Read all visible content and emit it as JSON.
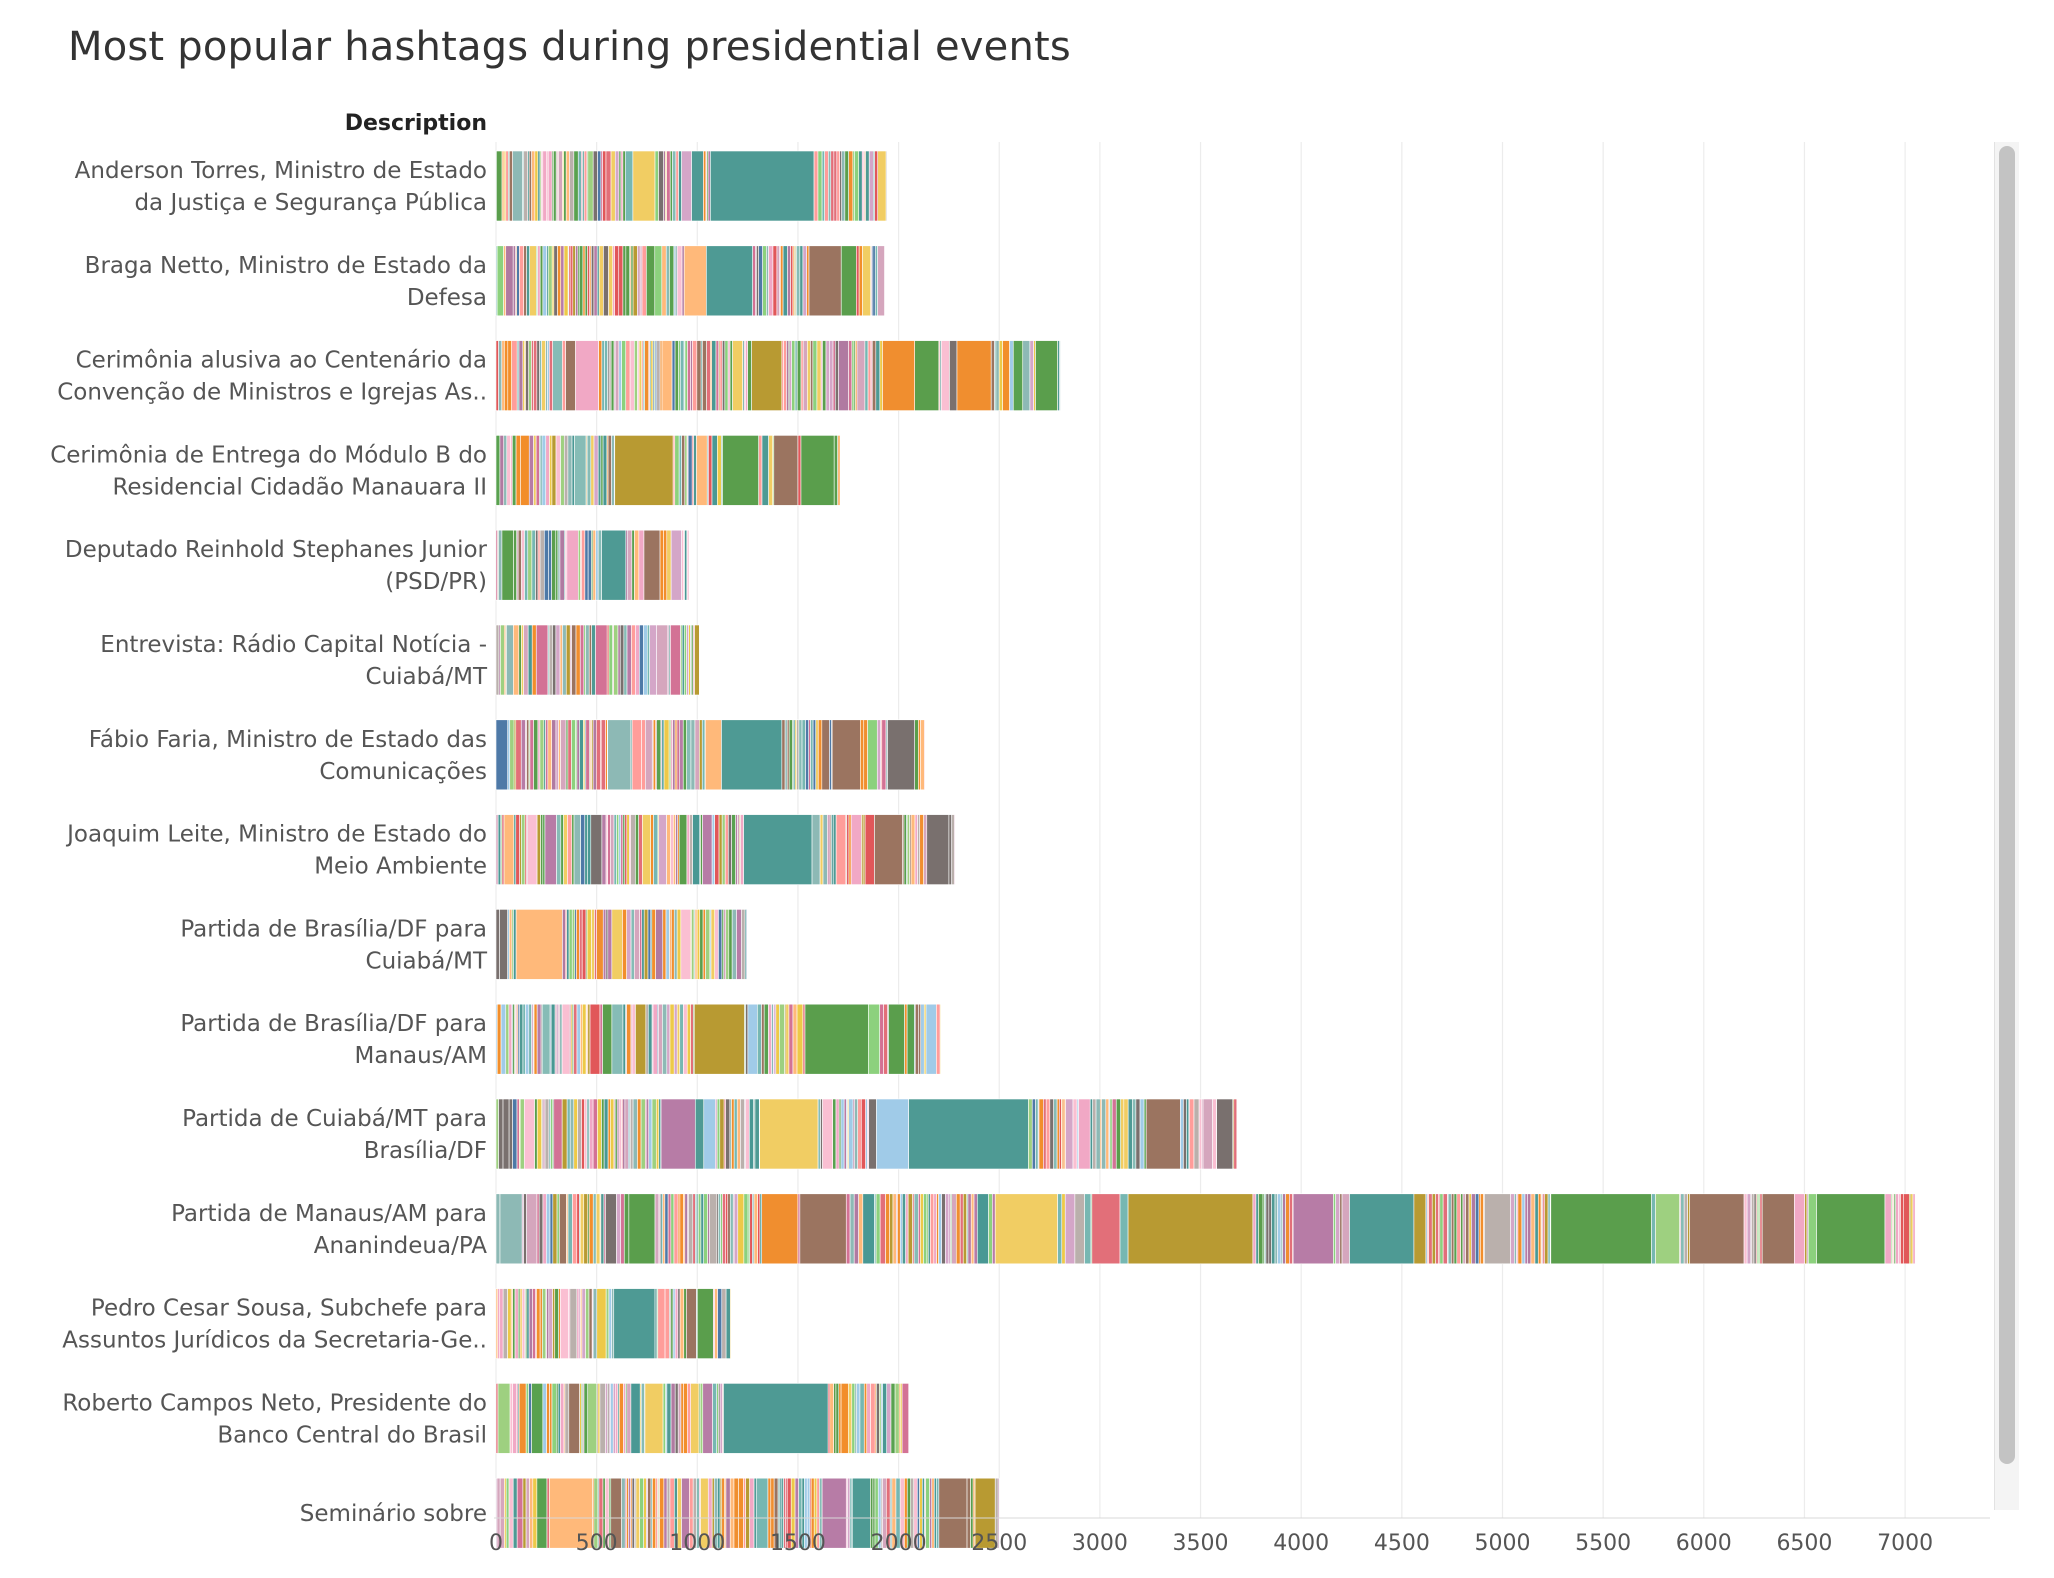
{
  "title": "Most popular hashtags during presidential events",
  "axis_header": "Description",
  "colors": [
    "#4e9a94",
    "#5a9e4c",
    "#9b7460",
    "#f08e2f",
    "#b89a32",
    "#b77ca6",
    "#e26f79",
    "#f1cd63",
    "#ffb97a",
    "#8db9b5",
    "#9ed080",
    "#a0cbe8",
    "#79706e",
    "#f1a8c5",
    "#d5a6bd",
    "#4e79a7",
    "#bab0ac",
    "#d37295",
    "#59a14f",
    "#edc948",
    "#e15759",
    "#76b7b2",
    "#86bcb6",
    "#ff9d9a",
    "#8cd17d",
    "#b07aa1",
    "#499894",
    "#f28e2b",
    "#d4a6c8",
    "#fabfd2"
  ],
  "chart_data": {
    "type": "bar",
    "orientation": "horizontal",
    "stacked": true,
    "title": "Most popular hashtags during presidential events",
    "ylabel": "Description",
    "xlabel": "",
    "xlim": [
      0,
      7450
    ],
    "xticks": [
      0,
      500,
      1000,
      1500,
      2000,
      2500,
      3000,
      3500,
      4000,
      4500,
      5000,
      5500,
      6000,
      6500,
      7000
    ],
    "grid": "vertical",
    "categories": [
      {
        "label": [
          "Anderson Torres, Ministro de Estado",
          "da Justiça e Segurança Pública"
        ],
        "total": 1940,
        "big": [
          {
            "s": 1065,
            "e": 1580,
            "c": 0
          },
          {
            "s": 680,
            "e": 790,
            "c": 7
          },
          {
            "s": 2,
            "e": 30,
            "c": 1
          }
        ]
      },
      {
        "label": [
          "Braga Netto, Ministro de Estado da",
          "Defesa"
        ],
        "total": 1930,
        "big": [
          {
            "s": 1045,
            "e": 1275,
            "c": 0
          },
          {
            "s": 935,
            "e": 1045,
            "c": 8
          },
          {
            "s": 1555,
            "e": 1715,
            "c": 2
          },
          {
            "s": 1715,
            "e": 1790,
            "c": 1
          }
        ]
      },
      {
        "label": [
          "Cerimônia alusiva ao Centenário da",
          "Convenção de Ministros e Igrejas As.."
        ],
        "total": 2800,
        "big": [
          {
            "s": 1270,
            "e": 1420,
            "c": 4
          },
          {
            "s": 1920,
            "e": 2080,
            "c": 3
          },
          {
            "s": 2290,
            "e": 2460,
            "c": 3
          },
          {
            "s": 2680,
            "e": 2790,
            "c": 1
          },
          {
            "s": 395,
            "e": 510,
            "c": 13
          },
          {
            "s": 2080,
            "e": 2200,
            "c": 1
          }
        ]
      },
      {
        "label": [
          "Cerimônia de Entrega do Módulo B do",
          "Residencial Cidadão Manauara II"
        ],
        "total": 1710,
        "big": [
          {
            "s": 590,
            "e": 880,
            "c": 4
          },
          {
            "s": 1125,
            "e": 1305,
            "c": 1
          },
          {
            "s": 1515,
            "e": 1680,
            "c": 1
          },
          {
            "s": 1380,
            "e": 1500,
            "c": 2
          }
        ]
      },
      {
        "label": [
          "Deputado Reinhold Stephanes Junior",
          "(PSD/PR)"
        ],
        "total": 960,
        "big": [
          {
            "s": 525,
            "e": 645,
            "c": 0
          },
          {
            "s": 735,
            "e": 815,
            "c": 2
          }
        ]
      },
      {
        "label": [
          "Entrevista: Rádio Capital Notícia -",
          "Cuiabá/MT"
        ],
        "total": 1010,
        "big": []
      },
      {
        "label": [
          "Fábio Faria, Ministro de Estado das",
          "Comunicações"
        ],
        "total": 2130,
        "big": [
          {
            "s": 1120,
            "e": 1420,
            "c": 0
          },
          {
            "s": 555,
            "e": 670,
            "c": 9
          },
          {
            "s": 1670,
            "e": 1810,
            "c": 2
          },
          {
            "s": 1945,
            "e": 2080,
            "c": 12
          },
          {
            "s": 1040,
            "e": 1120,
            "c": 8
          }
        ]
      },
      {
        "label": [
          "Joaquim Leite, Ministro de Estado do",
          "Meio Ambiente"
        ],
        "total": 2280,
        "big": [
          {
            "s": 1230,
            "e": 1570,
            "c": 0
          },
          {
            "s": 1880,
            "e": 2020,
            "c": 2
          },
          {
            "s": 1510,
            "e": 1610,
            "c": 9
          },
          {
            "s": 2140,
            "e": 2250,
            "c": 12
          }
        ]
      },
      {
        "label": [
          "Partida de Brasília/DF para",
          "Cuiabá/MT"
        ],
        "total": 1245,
        "big": [
          {
            "s": 100,
            "e": 330,
            "c": 8
          }
        ]
      },
      {
        "label": [
          "Partida de Brasília/DF para",
          "Manaus/AM"
        ],
        "total": 2210,
        "big": [
          {
            "s": 985,
            "e": 1235,
            "c": 4
          },
          {
            "s": 1535,
            "e": 1850,
            "c": 1
          },
          {
            "s": 1950,
            "e": 2030,
            "c": 1
          }
        ]
      },
      {
        "label": [
          "Partida de Cuiabá/MT para",
          "Brasília/DF"
        ],
        "total": 3680,
        "big": [
          {
            "s": 2050,
            "e": 2645,
            "c": 0
          },
          {
            "s": 1310,
            "e": 1600,
            "c": 7
          },
          {
            "s": 820,
            "e": 990,
            "c": 5
          },
          {
            "s": 1890,
            "e": 2050,
            "c": 11
          },
          {
            "s": 3230,
            "e": 3400,
            "c": 2
          },
          {
            "s": 3580,
            "e": 3660,
            "c": 12
          }
        ]
      },
      {
        "label": [
          "Partida de Manaus/AM para",
          "Ananindeua/PA"
        ],
        "total": 7050,
        "big": [
          {
            "s": 3140,
            "e": 3760,
            "c": 4
          },
          {
            "s": 2480,
            "e": 2790,
            "c": 7
          },
          {
            "s": 4240,
            "e": 4560,
            "c": 0
          },
          {
            "s": 5240,
            "e": 5740,
            "c": 1
          },
          {
            "s": 6560,
            "e": 6900,
            "c": 1
          },
          {
            "s": 5930,
            "e": 6200,
            "c": 2
          },
          {
            "s": 3960,
            "e": 4160,
            "c": 5
          },
          {
            "s": 1510,
            "e": 1740,
            "c": 2
          },
          {
            "s": 1320,
            "e": 1500,
            "c": 3
          },
          {
            "s": 5760,
            "e": 5880,
            "c": 10
          },
          {
            "s": 4910,
            "e": 5040,
            "c": 16
          },
          {
            "s": 660,
            "e": 790,
            "c": 1
          },
          {
            "s": 20,
            "e": 130,
            "c": 9
          },
          {
            "s": 2960,
            "e": 3100,
            "c": 6
          },
          {
            "s": 6290,
            "e": 6450,
            "c": 2
          }
        ]
      },
      {
        "label": [
          "Pedro Cesar Sousa, Subchefe para",
          "Assuntos Jurídicos da Secretaria-Ge.."
        ],
        "total": 1165,
        "big": [
          {
            "s": 585,
            "e": 790,
            "c": 0
          },
          {
            "s": 1000,
            "e": 1080,
            "c": 1
          }
        ]
      },
      {
        "label": [
          "Roberto Campos Neto, Presidente do",
          "Banco Central do Brasil"
        ],
        "total": 2050,
        "big": [
          {
            "s": 1130,
            "e": 1650,
            "c": 0
          },
          {
            "s": 740,
            "e": 830,
            "c": 7
          },
          {
            "s": 10,
            "e": 70,
            "c": 10
          }
        ]
      },
      {
        "label": [
          "Seminário sobre"
        ],
        "total": 2500,
        "big": [
          {
            "s": 265,
            "e": 480,
            "c": 8
          },
          {
            "s": 1620,
            "e": 1740,
            "c": 5
          },
          {
            "s": 1770,
            "e": 1860,
            "c": 0
          },
          {
            "s": 2200,
            "e": 2340,
            "c": 2
          },
          {
            "s": 2380,
            "e": 2480,
            "c": 4
          }
        ]
      }
    ]
  }
}
